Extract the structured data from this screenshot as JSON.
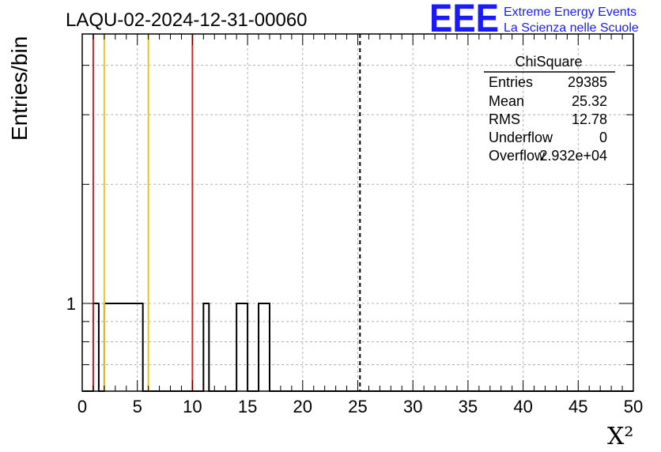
{
  "title": "LAQU-02-2024-12-31-00060",
  "logo": {
    "mark": "EEE",
    "line1": "Extreme Energy Events",
    "line2": "La Scienza nelle Scuole",
    "color": "#1a1aff"
  },
  "stats": {
    "header": "ChiSquare",
    "rows": [
      {
        "label": "Entries",
        "value": "29385"
      },
      {
        "label": "Mean",
        "value": "25.32"
      },
      {
        "label": "RMS",
        "value": "12.78"
      },
      {
        "label": "Underflow",
        "value": "0"
      },
      {
        "label": "Overflow",
        "value": "2.932e+04"
      }
    ]
  },
  "chart_data": {
    "type": "histogram",
    "title": "LAQU-02-2024-12-31-00060",
    "xlabel": "X²",
    "ylabel": "Entries/bin",
    "xlim": [
      0,
      50
    ],
    "ylog": true,
    "ylim": [
      0.6,
      4.8
    ],
    "grid": true,
    "bin_width": 0.5,
    "x_ticks": [
      "0",
      "5",
      "10",
      "15",
      "20",
      "25",
      "30",
      "35",
      "40",
      "45",
      "50"
    ],
    "y_tick_labels": [
      "1"
    ],
    "bin_edges_start": 0,
    "counts": [
      0,
      0,
      1,
      0,
      1,
      1,
      1,
      1,
      1,
      1,
      1,
      0,
      0,
      0,
      0,
      0,
      0,
      0,
      0,
      0,
      0,
      0,
      1,
      0,
      0,
      0,
      0,
      0,
      1,
      1,
      0,
      0,
      1,
      1,
      0,
      0,
      0,
      0,
      0,
      0,
      0,
      0,
      0,
      0,
      0,
      0,
      0,
      0,
      0,
      0,
      0,
      0,
      0,
      0,
      0,
      0,
      0,
      0,
      0,
      0,
      0,
      0,
      0,
      0,
      0,
      0,
      0,
      0,
      0,
      0,
      0,
      0,
      0,
      0,
      0,
      0,
      0,
      0,
      0,
      0,
      0,
      0,
      0,
      0,
      0,
      0,
      0,
      0,
      0,
      0,
      0,
      0,
      0,
      0,
      0,
      0,
      0,
      0,
      0,
      0
    ],
    "vertical_lines": [
      {
        "x": 1.0,
        "color": "#e02020",
        "style": "solid"
      },
      {
        "x": 2.0,
        "color": "#f2c21c",
        "style": "solid"
      },
      {
        "x": 6.0,
        "color": "#f2c21c",
        "style": "solid"
      },
      {
        "x": 10.0,
        "color": "#e02020",
        "style": "solid"
      },
      {
        "x": 25.2,
        "color": "#000000",
        "style": "dashed"
      }
    ]
  }
}
